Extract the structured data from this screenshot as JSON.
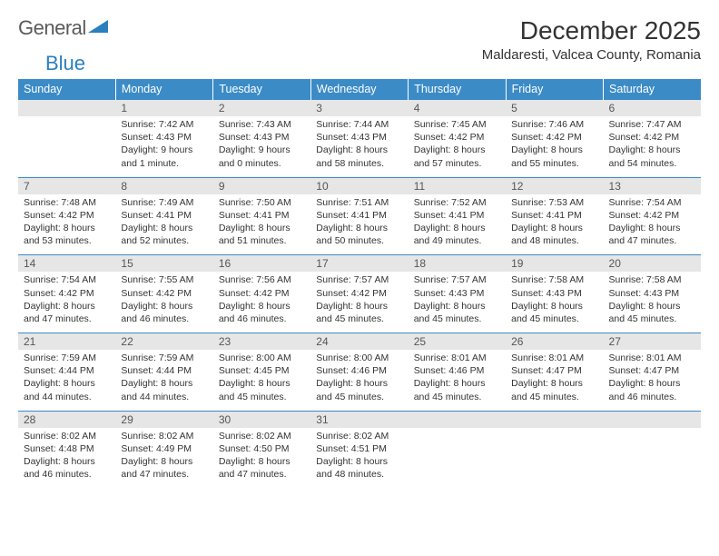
{
  "logo": {
    "text1": "General",
    "text2": "Blue"
  },
  "header": {
    "month_title": "December 2025",
    "location": "Maldaresti, Valcea County, Romania"
  },
  "colors": {
    "header_bg": "#3b8bc7",
    "header_text": "#ffffff",
    "daynum_bg": "#e6e6e6",
    "daynum_text": "#555555",
    "border": "#3b8bc7",
    "body_text": "#333333",
    "logo_gray": "#5a5a5a",
    "logo_blue": "#2a7fbf"
  },
  "calendar": {
    "day_headers": [
      "Sunday",
      "Monday",
      "Tuesday",
      "Wednesday",
      "Thursday",
      "Friday",
      "Saturday"
    ],
    "weeks": [
      [
        null,
        {
          "n": "1",
          "sr": "7:42 AM",
          "ss": "4:43 PM",
          "dl": "9 hours and 1 minute."
        },
        {
          "n": "2",
          "sr": "7:43 AM",
          "ss": "4:43 PM",
          "dl": "9 hours and 0 minutes."
        },
        {
          "n": "3",
          "sr": "7:44 AM",
          "ss": "4:43 PM",
          "dl": "8 hours and 58 minutes."
        },
        {
          "n": "4",
          "sr": "7:45 AM",
          "ss": "4:42 PM",
          "dl": "8 hours and 57 minutes."
        },
        {
          "n": "5",
          "sr": "7:46 AM",
          "ss": "4:42 PM",
          "dl": "8 hours and 55 minutes."
        },
        {
          "n": "6",
          "sr": "7:47 AM",
          "ss": "4:42 PM",
          "dl": "8 hours and 54 minutes."
        }
      ],
      [
        {
          "n": "7",
          "sr": "7:48 AM",
          "ss": "4:42 PM",
          "dl": "8 hours and 53 minutes."
        },
        {
          "n": "8",
          "sr": "7:49 AM",
          "ss": "4:41 PM",
          "dl": "8 hours and 52 minutes."
        },
        {
          "n": "9",
          "sr": "7:50 AM",
          "ss": "4:41 PM",
          "dl": "8 hours and 51 minutes."
        },
        {
          "n": "10",
          "sr": "7:51 AM",
          "ss": "4:41 PM",
          "dl": "8 hours and 50 minutes."
        },
        {
          "n": "11",
          "sr": "7:52 AM",
          "ss": "4:41 PM",
          "dl": "8 hours and 49 minutes."
        },
        {
          "n": "12",
          "sr": "7:53 AM",
          "ss": "4:41 PM",
          "dl": "8 hours and 48 minutes."
        },
        {
          "n": "13",
          "sr": "7:54 AM",
          "ss": "4:42 PM",
          "dl": "8 hours and 47 minutes."
        }
      ],
      [
        {
          "n": "14",
          "sr": "7:54 AM",
          "ss": "4:42 PM",
          "dl": "8 hours and 47 minutes."
        },
        {
          "n": "15",
          "sr": "7:55 AM",
          "ss": "4:42 PM",
          "dl": "8 hours and 46 minutes."
        },
        {
          "n": "16",
          "sr": "7:56 AM",
          "ss": "4:42 PM",
          "dl": "8 hours and 46 minutes."
        },
        {
          "n": "17",
          "sr": "7:57 AM",
          "ss": "4:42 PM",
          "dl": "8 hours and 45 minutes."
        },
        {
          "n": "18",
          "sr": "7:57 AM",
          "ss": "4:43 PM",
          "dl": "8 hours and 45 minutes."
        },
        {
          "n": "19",
          "sr": "7:58 AM",
          "ss": "4:43 PM",
          "dl": "8 hours and 45 minutes."
        },
        {
          "n": "20",
          "sr": "7:58 AM",
          "ss": "4:43 PM",
          "dl": "8 hours and 45 minutes."
        }
      ],
      [
        {
          "n": "21",
          "sr": "7:59 AM",
          "ss": "4:44 PM",
          "dl": "8 hours and 44 minutes."
        },
        {
          "n": "22",
          "sr": "7:59 AM",
          "ss": "4:44 PM",
          "dl": "8 hours and 44 minutes."
        },
        {
          "n": "23",
          "sr": "8:00 AM",
          "ss": "4:45 PM",
          "dl": "8 hours and 45 minutes."
        },
        {
          "n": "24",
          "sr": "8:00 AM",
          "ss": "4:46 PM",
          "dl": "8 hours and 45 minutes."
        },
        {
          "n": "25",
          "sr": "8:01 AM",
          "ss": "4:46 PM",
          "dl": "8 hours and 45 minutes."
        },
        {
          "n": "26",
          "sr": "8:01 AM",
          "ss": "4:47 PM",
          "dl": "8 hours and 45 minutes."
        },
        {
          "n": "27",
          "sr": "8:01 AM",
          "ss": "4:47 PM",
          "dl": "8 hours and 46 minutes."
        }
      ],
      [
        {
          "n": "28",
          "sr": "8:02 AM",
          "ss": "4:48 PM",
          "dl": "8 hours and 46 minutes."
        },
        {
          "n": "29",
          "sr": "8:02 AM",
          "ss": "4:49 PM",
          "dl": "8 hours and 47 minutes."
        },
        {
          "n": "30",
          "sr": "8:02 AM",
          "ss": "4:50 PM",
          "dl": "8 hours and 47 minutes."
        },
        {
          "n": "31",
          "sr": "8:02 AM",
          "ss": "4:51 PM",
          "dl": "8 hours and 48 minutes."
        },
        null,
        null,
        null
      ]
    ],
    "labels": {
      "sunrise": "Sunrise:",
      "sunset": "Sunset:",
      "daylight": "Daylight:"
    }
  }
}
